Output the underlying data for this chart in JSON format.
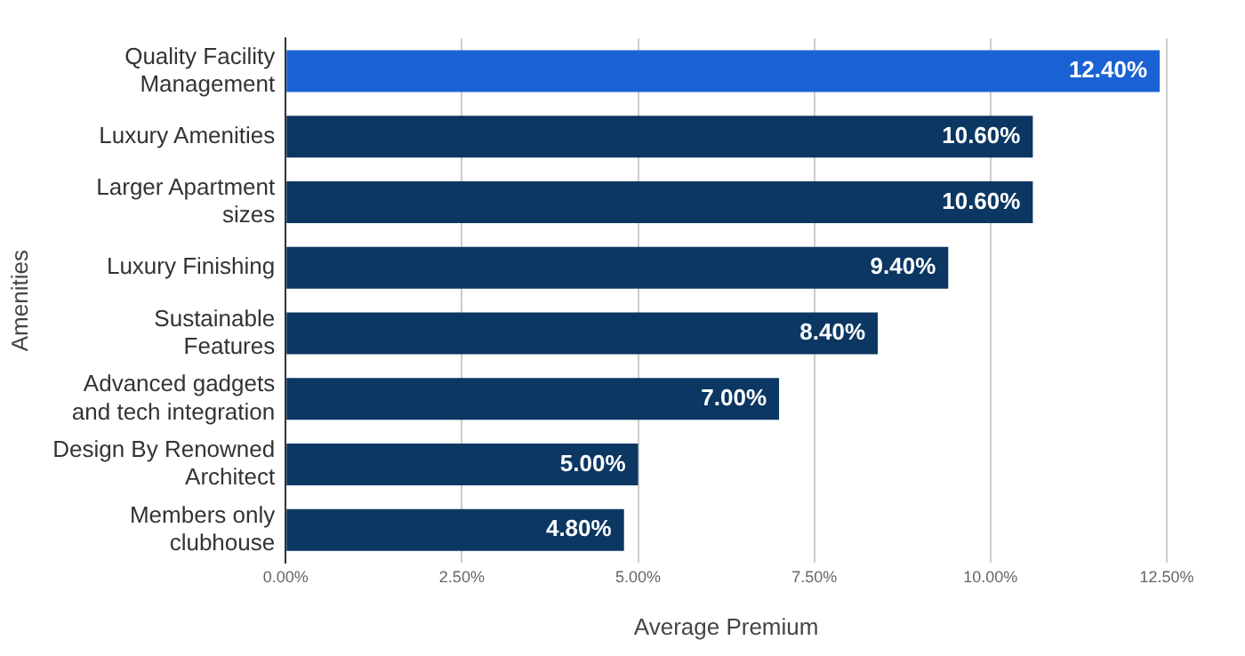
{
  "chart_data": {
    "type": "bar",
    "orientation": "horizontal",
    "xlabel": "Average Premium",
    "ylabel": "Amenities",
    "categories": [
      "Quality Facility Management",
      "Luxury Amenities",
      "Larger Apartment sizes",
      "Luxury Finishing",
      "Sustainable Features",
      "Advanced gadgets and tech integration",
      "Design By Renowned Architect",
      "Members only clubhouse"
    ],
    "values": [
      12.4,
      10.6,
      10.6,
      9.4,
      8.4,
      7.0,
      5.0,
      4.8
    ],
    "value_labels": [
      "12.40%",
      "10.60%",
      "10.60%",
      "9.40%",
      "8.40%",
      "7.00%",
      "5.00%",
      "4.80%"
    ],
    "colors": [
      "#1a62d4",
      "#0b3762",
      "#0b3762",
      "#0b3762",
      "#0b3762",
      "#0b3762",
      "#0b3762",
      "#0b3762"
    ],
    "xlim": [
      0,
      12.5
    ],
    "xticks": [
      {
        "value": 0,
        "label": "0.00%"
      },
      {
        "value": 2.5,
        "label": "2.50%"
      },
      {
        "value": 5,
        "label": "5.00%"
      },
      {
        "value": 7.5,
        "label": "7.50%"
      },
      {
        "value": 10,
        "label": "10.00%"
      },
      {
        "value": 12.5,
        "label": "12.50%"
      }
    ],
    "grid": "x",
    "legend": false
  }
}
